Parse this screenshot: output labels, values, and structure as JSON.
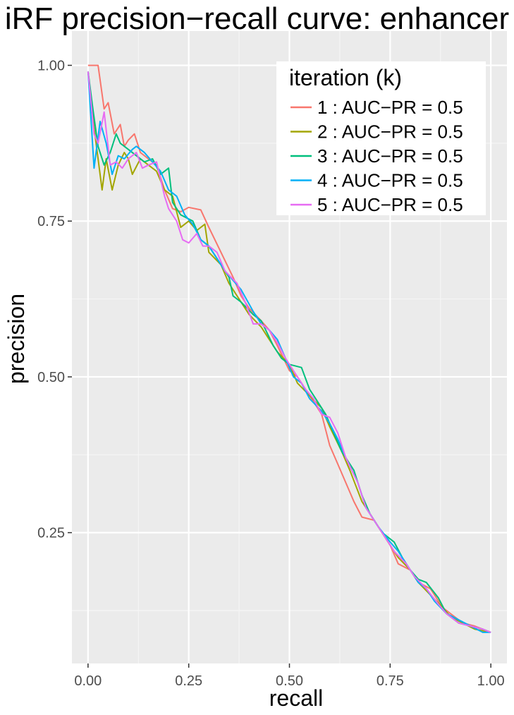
{
  "chart_data": {
    "type": "line",
    "title": "iRF precision−recall curve: enhancer",
    "xlabel": "recall",
    "ylabel": "precision",
    "xlim": [
      -0.04,
      1.04
    ],
    "ylim": [
      0.04,
      1.055
    ],
    "x_ticks": [
      0.0,
      0.25,
      0.5,
      0.75,
      1.0
    ],
    "x_tick_labels": [
      "0.00",
      "0.25",
      "0.50",
      "0.75",
      "1.00"
    ],
    "y_ticks": [
      0.25,
      0.5,
      0.75,
      1.0
    ],
    "y_tick_labels": [
      "0.25",
      "0.50",
      "0.75",
      "1.00"
    ],
    "grid": true,
    "legend_title": "iteration (k)",
    "legend_position": "top-right",
    "series": [
      {
        "name": "1 : AUC−PR =  0.5",
        "color": "#F8766D",
        "points": [
          [
            0.0,
            1.0
          ],
          [
            0.01,
            1.0
          ],
          [
            0.025,
            1.0
          ],
          [
            0.04,
            0.93
          ],
          [
            0.05,
            0.94
          ],
          [
            0.065,
            0.89
          ],
          [
            0.08,
            0.905
          ],
          [
            0.09,
            0.87
          ],
          [
            0.1,
            0.88
          ],
          [
            0.115,
            0.89
          ],
          [
            0.13,
            0.86
          ],
          [
            0.15,
            0.85
          ],
          [
            0.17,
            0.84
          ],
          [
            0.19,
            0.8
          ],
          [
            0.21,
            0.77
          ],
          [
            0.23,
            0.765
          ],
          [
            0.25,
            0.772
          ],
          [
            0.28,
            0.768
          ],
          [
            0.3,
            0.74
          ],
          [
            0.33,
            0.7
          ],
          [
            0.36,
            0.66
          ],
          [
            0.38,
            0.63
          ],
          [
            0.4,
            0.61
          ],
          [
            0.43,
            0.59
          ],
          [
            0.45,
            0.575
          ],
          [
            0.47,
            0.55
          ],
          [
            0.5,
            0.51
          ],
          [
            0.52,
            0.5
          ],
          [
            0.55,
            0.47
          ],
          [
            0.58,
            0.44
          ],
          [
            0.6,
            0.39
          ],
          [
            0.62,
            0.36
          ],
          [
            0.64,
            0.33
          ],
          [
            0.66,
            0.3
          ],
          [
            0.68,
            0.275
          ],
          [
            0.71,
            0.27
          ],
          [
            0.73,
            0.25
          ],
          [
            0.75,
            0.23
          ],
          [
            0.77,
            0.2
          ],
          [
            0.8,
            0.19
          ],
          [
            0.82,
            0.17
          ],
          [
            0.85,
            0.16
          ],
          [
            0.88,
            0.13
          ],
          [
            0.9,
            0.12
          ],
          [
            0.93,
            0.105
          ],
          [
            0.96,
            0.1
          ],
          [
            1.0,
            0.09
          ]
        ]
      },
      {
        "name": "2 : AUC−PR =  0.5",
        "color": "#A3A500",
        "points": [
          [
            0.0,
            0.99
          ],
          [
            0.015,
            0.9
          ],
          [
            0.025,
            0.85
          ],
          [
            0.035,
            0.8
          ],
          [
            0.045,
            0.85
          ],
          [
            0.06,
            0.8
          ],
          [
            0.075,
            0.84
          ],
          [
            0.09,
            0.86
          ],
          [
            0.1,
            0.85
          ],
          [
            0.11,
            0.825
          ],
          [
            0.13,
            0.85
          ],
          [
            0.15,
            0.84
          ],
          [
            0.17,
            0.83
          ],
          [
            0.19,
            0.8
          ],
          [
            0.21,
            0.79
          ],
          [
            0.23,
            0.74
          ],
          [
            0.25,
            0.75
          ],
          [
            0.27,
            0.735
          ],
          [
            0.29,
            0.745
          ],
          [
            0.3,
            0.7
          ],
          [
            0.33,
            0.68
          ],
          [
            0.35,
            0.65
          ],
          [
            0.38,
            0.62
          ],
          [
            0.4,
            0.6
          ],
          [
            0.43,
            0.58
          ],
          [
            0.45,
            0.56
          ],
          [
            0.47,
            0.54
          ],
          [
            0.5,
            0.52
          ],
          [
            0.52,
            0.49
          ],
          [
            0.55,
            0.47
          ],
          [
            0.58,
            0.45
          ],
          [
            0.6,
            0.42
          ],
          [
            0.63,
            0.38
          ],
          [
            0.65,
            0.35
          ],
          [
            0.68,
            0.3
          ],
          [
            0.7,
            0.28
          ],
          [
            0.72,
            0.26
          ],
          [
            0.75,
            0.23
          ],
          [
            0.77,
            0.21
          ],
          [
            0.8,
            0.19
          ],
          [
            0.82,
            0.17
          ],
          [
            0.85,
            0.15
          ],
          [
            0.88,
            0.13
          ],
          [
            0.9,
            0.115
          ],
          [
            0.93,
            0.105
          ],
          [
            0.96,
            0.095
          ],
          [
            1.0,
            0.09
          ]
        ]
      },
      {
        "name": "3 : AUC−PR =  0.5",
        "color": "#00BF7D",
        "points": [
          [
            0.0,
            0.99
          ],
          [
            0.012,
            0.93
          ],
          [
            0.025,
            0.87
          ],
          [
            0.04,
            0.84
          ],
          [
            0.055,
            0.86
          ],
          [
            0.07,
            0.89
          ],
          [
            0.08,
            0.875
          ],
          [
            0.1,
            0.865
          ],
          [
            0.12,
            0.855
          ],
          [
            0.14,
            0.845
          ],
          [
            0.16,
            0.85
          ],
          [
            0.18,
            0.825
          ],
          [
            0.2,
            0.835
          ],
          [
            0.21,
            0.78
          ],
          [
            0.23,
            0.76
          ],
          [
            0.26,
            0.75
          ],
          [
            0.28,
            0.72
          ],
          [
            0.3,
            0.71
          ],
          [
            0.32,
            0.69
          ],
          [
            0.35,
            0.66
          ],
          [
            0.36,
            0.63
          ],
          [
            0.38,
            0.62
          ],
          [
            0.41,
            0.6
          ],
          [
            0.43,
            0.59
          ],
          [
            0.46,
            0.55
          ],
          [
            0.48,
            0.53
          ],
          [
            0.5,
            0.52
          ],
          [
            0.53,
            0.515
          ],
          [
            0.55,
            0.48
          ],
          [
            0.57,
            0.46
          ],
          [
            0.59,
            0.44
          ],
          [
            0.61,
            0.41
          ],
          [
            0.63,
            0.38
          ],
          [
            0.66,
            0.35
          ],
          [
            0.68,
            0.31
          ],
          [
            0.7,
            0.28
          ],
          [
            0.73,
            0.25
          ],
          [
            0.76,
            0.235
          ],
          [
            0.78,
            0.21
          ],
          [
            0.8,
            0.19
          ],
          [
            0.82,
            0.175
          ],
          [
            0.84,
            0.17
          ],
          [
            0.87,
            0.145
          ],
          [
            0.89,
            0.12
          ],
          [
            0.92,
            0.105
          ],
          [
            0.95,
            0.1
          ],
          [
            0.98,
            0.095
          ],
          [
            1.0,
            0.09
          ]
        ]
      },
      {
        "name": "4 : AUC−PR =  0.5",
        "color": "#00B0F6",
        "points": [
          [
            0.0,
            0.99
          ],
          [
            0.015,
            0.835
          ],
          [
            0.03,
            0.91
          ],
          [
            0.045,
            0.875
          ],
          [
            0.06,
            0.825
          ],
          [
            0.075,
            0.855
          ],
          [
            0.09,
            0.85
          ],
          [
            0.11,
            0.865
          ],
          [
            0.12,
            0.87
          ],
          [
            0.14,
            0.86
          ],
          [
            0.16,
            0.845
          ],
          [
            0.18,
            0.83
          ],
          [
            0.2,
            0.8
          ],
          [
            0.22,
            0.79
          ],
          [
            0.24,
            0.76
          ],
          [
            0.26,
            0.745
          ],
          [
            0.28,
            0.72
          ],
          [
            0.3,
            0.71
          ],
          [
            0.32,
            0.69
          ],
          [
            0.34,
            0.67
          ],
          [
            0.36,
            0.655
          ],
          [
            0.38,
            0.64
          ],
          [
            0.41,
            0.605
          ],
          [
            0.43,
            0.585
          ],
          [
            0.45,
            0.575
          ],
          [
            0.47,
            0.56
          ],
          [
            0.49,
            0.53
          ],
          [
            0.51,
            0.5
          ],
          [
            0.53,
            0.49
          ],
          [
            0.55,
            0.465
          ],
          [
            0.58,
            0.445
          ],
          [
            0.6,
            0.425
          ],
          [
            0.62,
            0.4
          ],
          [
            0.64,
            0.37
          ],
          [
            0.67,
            0.33
          ],
          [
            0.69,
            0.29
          ],
          [
            0.72,
            0.26
          ],
          [
            0.75,
            0.235
          ],
          [
            0.77,
            0.22
          ],
          [
            0.79,
            0.2
          ],
          [
            0.82,
            0.17
          ],
          [
            0.84,
            0.16
          ],
          [
            0.86,
            0.14
          ],
          [
            0.89,
            0.12
          ],
          [
            0.92,
            0.11
          ],
          [
            0.95,
            0.1
          ],
          [
            0.98,
            0.09
          ],
          [
            1.0,
            0.09
          ]
        ]
      },
      {
        "name": "5 : AUC−PR =  0.5",
        "color": "#E76BF3",
        "points": [
          [
            0.0,
            0.99
          ],
          [
            0.015,
            0.89
          ],
          [
            0.025,
            0.875
          ],
          [
            0.04,
            0.925
          ],
          [
            0.055,
            0.84
          ],
          [
            0.07,
            0.845
          ],
          [
            0.085,
            0.835
          ],
          [
            0.1,
            0.85
          ],
          [
            0.12,
            0.86
          ],
          [
            0.135,
            0.835
          ],
          [
            0.15,
            0.84
          ],
          [
            0.17,
            0.845
          ],
          [
            0.19,
            0.79
          ],
          [
            0.2,
            0.77
          ],
          [
            0.22,
            0.75
          ],
          [
            0.235,
            0.72
          ],
          [
            0.25,
            0.715
          ],
          [
            0.27,
            0.73
          ],
          [
            0.285,
            0.71
          ],
          [
            0.3,
            0.71
          ],
          [
            0.32,
            0.7
          ],
          [
            0.34,
            0.67
          ],
          [
            0.37,
            0.65
          ],
          [
            0.39,
            0.62
          ],
          [
            0.41,
            0.585
          ],
          [
            0.43,
            0.585
          ],
          [
            0.45,
            0.575
          ],
          [
            0.47,
            0.555
          ],
          [
            0.49,
            0.53
          ],
          [
            0.52,
            0.5
          ],
          [
            0.54,
            0.48
          ],
          [
            0.56,
            0.465
          ],
          [
            0.58,
            0.44
          ],
          [
            0.6,
            0.435
          ],
          [
            0.62,
            0.41
          ],
          [
            0.64,
            0.37
          ],
          [
            0.67,
            0.33
          ],
          [
            0.69,
            0.29
          ],
          [
            0.71,
            0.27
          ],
          [
            0.74,
            0.24
          ],
          [
            0.76,
            0.22
          ],
          [
            0.79,
            0.2
          ],
          [
            0.81,
            0.18
          ],
          [
            0.84,
            0.16
          ],
          [
            0.87,
            0.135
          ],
          [
            0.89,
            0.12
          ],
          [
            0.92,
            0.105
          ],
          [
            0.95,
            0.1
          ],
          [
            0.98,
            0.095
          ],
          [
            1.0,
            0.09
          ]
        ]
      }
    ]
  }
}
